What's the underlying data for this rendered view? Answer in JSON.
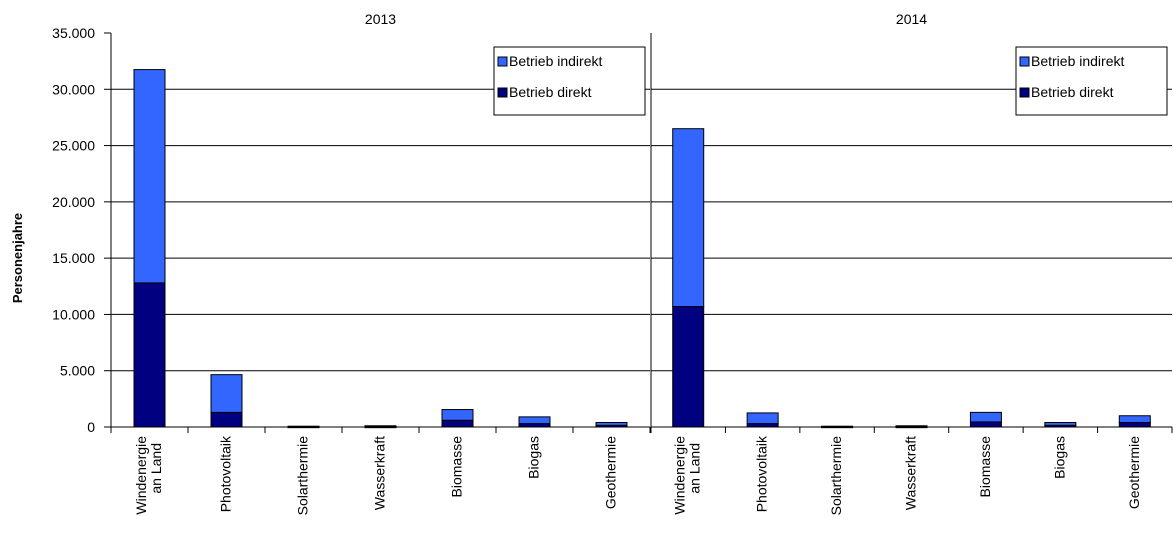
{
  "chart_data": {
    "type": "bar",
    "stacked": true,
    "ylabel": "Personenjahre",
    "ylim": [
      0,
      35000
    ],
    "yticks": [
      0,
      5000,
      10000,
      15000,
      20000,
      25000,
      30000,
      35000
    ],
    "ytick_labels": [
      "0",
      "5.000",
      "10.000",
      "15.000",
      "20.000",
      "25.000",
      "30.000",
      "35.000"
    ],
    "grid": true,
    "legend_position": "top-right",
    "colors": {
      "Betrieb direkt": "#000080",
      "Betrieb indirekt": "#3366FF"
    },
    "panels": [
      {
        "title": "2013",
        "categories": [
          "Windenergie an Land",
          "Photovoltaik",
          "Solarthermie",
          "Wasserkraft",
          "Biomasse",
          "Biogas",
          "Geothermie"
        ],
        "series": [
          {
            "name": "Betrieb direkt",
            "values": [
              12800,
              1300,
              30,
              30,
              600,
              300,
              150
            ]
          },
          {
            "name": "Betrieb indirekt",
            "values": [
              18950,
              3350,
              40,
              80,
              950,
              600,
              250
            ]
          }
        ]
      },
      {
        "title": "2014",
        "categories": [
          "Windenergie an Land",
          "Photovoltaik",
          "Solarthermie",
          "Wasserkraft",
          "Biomasse",
          "Biogas",
          "Geothermie"
        ],
        "series": [
          {
            "name": "Betrieb direkt",
            "values": [
              10700,
              300,
              30,
              30,
              450,
              150,
              400
            ]
          },
          {
            "name": "Betrieb indirekt",
            "values": [
              15800,
              950,
              40,
              80,
              850,
              250,
              600
            ]
          }
        ]
      }
    ]
  }
}
